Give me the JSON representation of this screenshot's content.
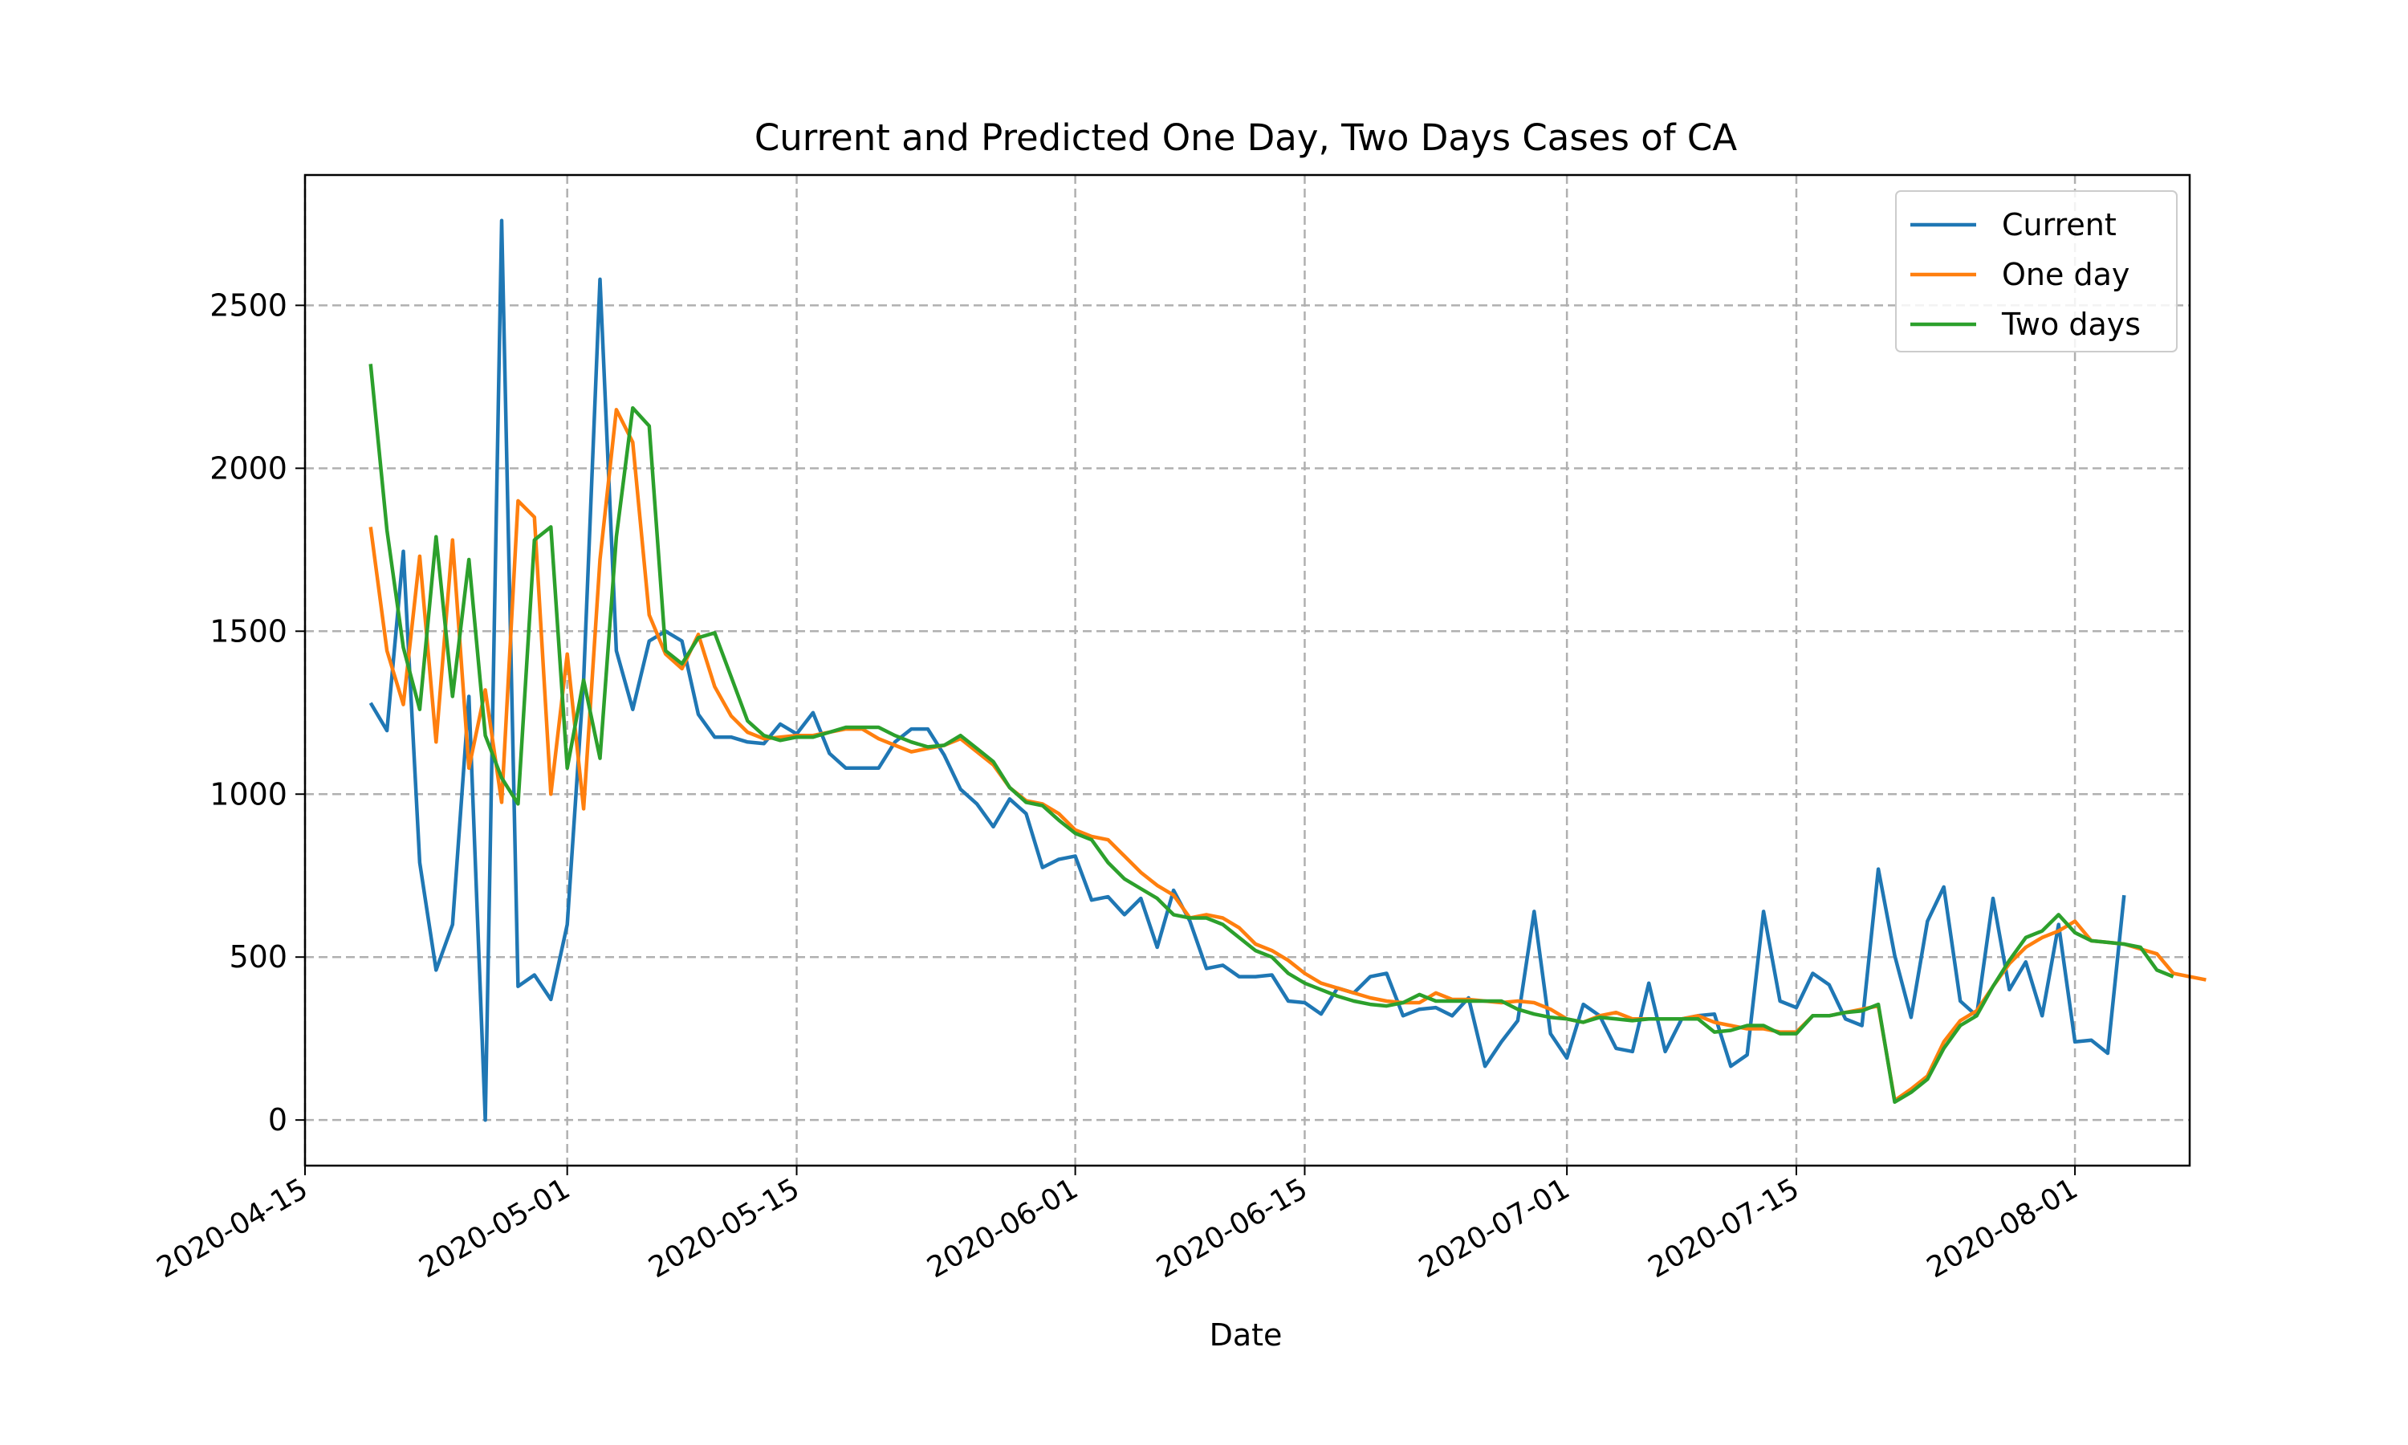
{
  "chart_data": {
    "type": "line",
    "title": "Current and Predicted One Day, Two Days Cases of CA",
    "xlabel": "Date",
    "ylabel": "",
    "x_tick_labels": [
      "2020-04-15",
      "2020-05-01",
      "2020-05-15",
      "2020-06-01",
      "2020-06-15",
      "2020-07-01",
      "2020-07-15",
      "2020-08-01"
    ],
    "y_ticks": [
      0,
      500,
      1000,
      1500,
      2000,
      2500
    ],
    "xlim": [
      "2020-04-15",
      "2020-08-08"
    ],
    "ylim": [
      -140,
      2900
    ],
    "grid": true,
    "legend_position": "top-right",
    "x_start": "2020-04-19",
    "series": [
      {
        "name": "Current",
        "color": "#1f77b4",
        "values": [
          1280,
          1195,
          1745,
          790,
          460,
          600,
          1300,
          0,
          2760,
          410,
          445,
          370,
          600,
          1350,
          2580,
          1440,
          1260,
          1470,
          1500,
          1470,
          1245,
          1175,
          1175,
          1160,
          1155,
          1215,
          1185,
          1250,
          1125,
          1080,
          1080,
          1080,
          1160,
          1200,
          1200,
          1120,
          1015,
          970,
          900,
          985,
          940,
          775,
          800,
          810,
          675,
          685,
          630,
          680,
          530,
          705,
          610,
          465,
          475,
          440,
          440,
          445,
          365,
          360,
          325,
          405,
          390,
          440,
          450,
          320,
          340,
          345,
          320,
          375,
          165,
          240,
          305,
          640,
          265,
          190,
          355,
          320,
          220,
          210,
          420,
          210,
          310,
          320,
          325,
          165,
          200,
          640,
          365,
          345,
          450,
          415,
          310,
          290,
          770,
          505,
          315,
          610,
          715,
          365,
          320,
          680,
          400,
          485,
          320,
          600,
          240,
          245,
          205,
          690
        ]
      },
      {
        "name": "One day",
        "color": "#ff7f0e",
        "values": [
          1820,
          1440,
          1275,
          1730,
          1160,
          1780,
          1080,
          1320,
          975,
          1900,
          1850,
          1000,
          1430,
          955,
          1720,
          2180,
          2080,
          1550,
          1430,
          1385,
          1490,
          1330,
          1240,
          1190,
          1170,
          1175,
          1180,
          1180,
          1190,
          1200,
          1200,
          1170,
          1150,
          1130,
          1140,
          1150,
          1170,
          1130,
          1090,
          1020,
          980,
          970,
          940,
          890,
          870,
          860,
          810,
          760,
          720,
          690,
          620,
          630,
          620,
          590,
          540,
          520,
          490,
          450,
          420,
          405,
          390,
          375,
          365,
          360,
          360,
          390,
          370,
          370,
          365,
          360,
          365,
          360,
          340,
          310,
          300,
          320,
          330,
          310,
          310,
          310,
          310,
          320,
          300,
          290,
          280,
          280,
          270,
          270,
          320,
          320,
          330,
          340,
          350,
          60,
          95,
          135,
          240,
          305,
          335,
          410,
          480,
          530,
          560,
          580,
          610,
          550,
          545,
          540,
          525,
          510,
          450,
          440,
          430
        ]
      },
      {
        "name": "Two days",
        "color": "#2ca02c",
        "values": [
          2320,
          1810,
          1450,
          1260,
          1790,
          1300,
          1720,
          1180,
          1050,
          970,
          1780,
          1820,
          1080,
          1350,
          1110,
          1790,
          2185,
          2130,
          1440,
          1400,
          1480,
          1495,
          1360,
          1225,
          1180,
          1165,
          1175,
          1175,
          1190,
          1205,
          1205,
          1205,
          1180,
          1160,
          1145,
          1150,
          1180,
          1140,
          1100,
          1020,
          975,
          965,
          920,
          880,
          860,
          790,
          740,
          710,
          680,
          630,
          620,
          620,
          600,
          560,
          520,
          500,
          450,
          420,
          400,
          380,
          365,
          355,
          350,
          360,
          385,
          365,
          365,
          365,
          365,
          365,
          340,
          325,
          315,
          310,
          300,
          315,
          310,
          305,
          310,
          310,
          310,
          310,
          270,
          275,
          290,
          290,
          265,
          265,
          320,
          320,
          330,
          335,
          355,
          55,
          85,
          125,
          220,
          290,
          320,
          410,
          490,
          560,
          580,
          630,
          575,
          550,
          545,
          540,
          530,
          460,
          440
        ]
      }
    ]
  }
}
